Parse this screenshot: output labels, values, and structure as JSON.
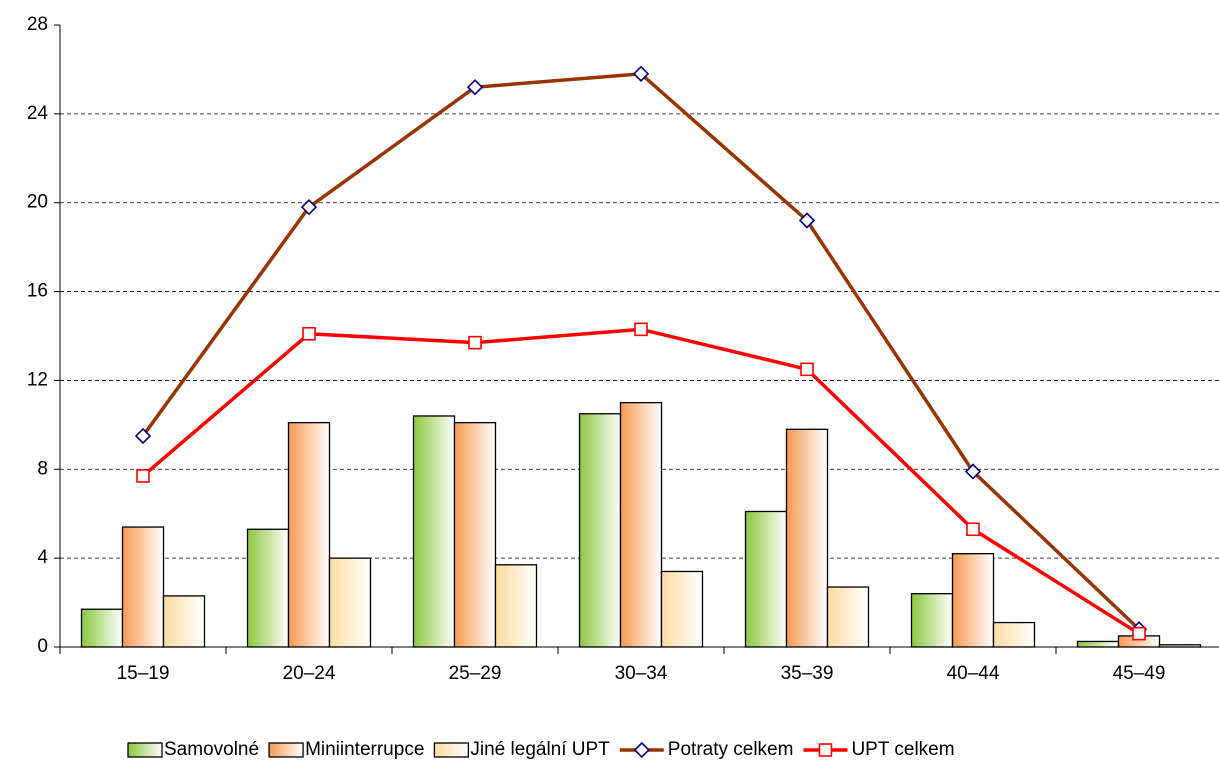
{
  "chart_data": {
    "type": "bar_line",
    "categories": [
      "15–19",
      "20–24",
      "25–29",
      "30–34",
      "35–39",
      "40–44",
      "45–49"
    ],
    "series": [
      {
        "name": "Samovolné",
        "type": "bar",
        "color": "#8cc63e",
        "values": [
          1.7,
          5.3,
          10.4,
          10.5,
          6.1,
          2.4,
          0.25
        ]
      },
      {
        "name": "Miniinterrupce",
        "type": "bar",
        "color": "#f79a52",
        "values": [
          5.4,
          10.1,
          10.1,
          11.0,
          9.8,
          4.2,
          0.5
        ]
      },
      {
        "name": "Jiné legální UPT",
        "type": "bar",
        "color": "#fcdca0",
        "values": [
          2.3,
          4.0,
          3.7,
          3.4,
          2.7,
          1.1,
          0.1
        ]
      },
      {
        "name": "Potraty celkem",
        "type": "line",
        "color": "#993300",
        "marker": "diamond",
        "marker_color": "#000080",
        "values": [
          9.5,
          19.8,
          25.2,
          25.8,
          19.2,
          7.9,
          0.8
        ]
      },
      {
        "name": "UPT celkem",
        "type": "line",
        "color": "#ff0000",
        "marker": "square",
        "marker_color": "#ff0000",
        "values": [
          7.7,
          14.1,
          13.7,
          14.3,
          12.5,
          5.3,
          0.6
        ]
      }
    ],
    "ylim": [
      0,
      28
    ],
    "yticks": [
      0,
      4,
      8,
      12,
      16,
      20,
      24,
      28
    ],
    "grid": true
  }
}
